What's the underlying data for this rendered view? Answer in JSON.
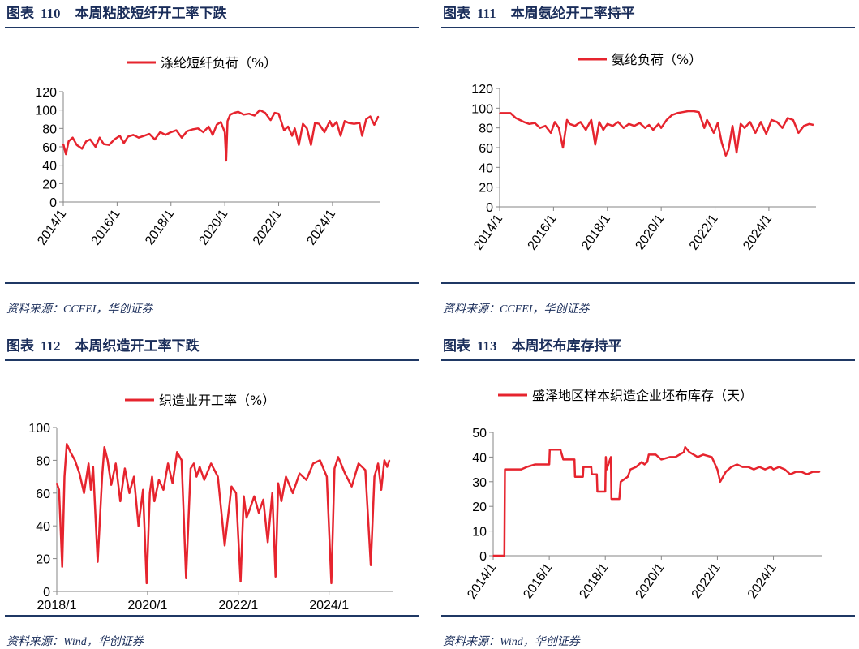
{
  "palette": {
    "line": "#e6242e",
    "title": "#1a2d5a",
    "rule": "#1f3864"
  },
  "panels": [
    {
      "label": "图表",
      "number": "110",
      "title": "本周粘胶短纤开工率下跌",
      "source": "资料来源：CCFEI，华创证券",
      "chart_data": {
        "type": "line",
        "legend": "涤纶短纤负荷（%）",
        "ylim": [
          0,
          120
        ],
        "yticks": [
          0,
          20,
          40,
          60,
          80,
          100,
          120
        ],
        "xlim": [
          2014.0,
          2025.75
        ],
        "xticks": [
          "2014/1",
          "2016/1",
          "2018/1",
          "2020/1",
          "2022/1",
          "2024/1"
        ],
        "xtick_values": [
          2014,
          2016,
          2018,
          2020,
          2022,
          2024
        ],
        "xtick_rotate": true,
        "x": [
          2014.0,
          2014.1,
          2014.2,
          2014.35,
          2014.5,
          2014.7,
          2014.85,
          2015.0,
          2015.2,
          2015.35,
          2015.5,
          2015.7,
          2015.9,
          2016.1,
          2016.25,
          2016.4,
          2016.6,
          2016.8,
          2017.0,
          2017.2,
          2017.4,
          2017.6,
          2017.8,
          2018.0,
          2018.2,
          2018.4,
          2018.6,
          2018.8,
          2019.0,
          2019.2,
          2019.4,
          2019.55,
          2019.7,
          2019.85,
          2020.0,
          2020.05,
          2020.1,
          2020.2,
          2020.35,
          2020.5,
          2020.7,
          2020.9,
          2021.1,
          2021.3,
          2021.5,
          2021.7,
          2021.85,
          2022.0,
          2022.2,
          2022.35,
          2022.5,
          2022.6,
          2022.75,
          2022.9,
          2023.05,
          2023.2,
          2023.35,
          2023.5,
          2023.7,
          2023.9,
          2024.0,
          2024.15,
          2024.3,
          2024.45,
          2024.6,
          2024.8,
          2025.0,
          2025.1,
          2025.25,
          2025.4,
          2025.55,
          2025.7
        ],
        "values": [
          63,
          52,
          66,
          70,
          62,
          58,
          66,
          68,
          60,
          70,
          63,
          62,
          68,
          72,
          64,
          71,
          73,
          70,
          72,
          74,
          68,
          76,
          73,
          76,
          78,
          70,
          77,
          79,
          80,
          76,
          82,
          73,
          84,
          87,
          76,
          45,
          88,
          95,
          97,
          98,
          95,
          96,
          94,
          100,
          97,
          89,
          97,
          96,
          78,
          82,
          72,
          80,
          62,
          85,
          80,
          62,
          86,
          85,
          76,
          88,
          82,
          87,
          72,
          88,
          86,
          85,
          86,
          72,
          90,
          93,
          84,
          93
        ]
      }
    },
    {
      "label": "图表",
      "number": "111",
      "title": "本周氨纶开工率持平",
      "source": "资料来源：CCFEI，华创证券",
      "chart_data": {
        "type": "line",
        "legend": "氨纶负荷（%）",
        "ylim": [
          0,
          120
        ],
        "yticks": [
          0,
          20,
          40,
          60,
          80,
          100,
          120
        ],
        "xlim": [
          2014.0,
          2025.75
        ],
        "xticks": [
          "2014/1",
          "2016/1",
          "2018/1",
          "2020/1",
          "2022/1",
          "2024/1"
        ],
        "xtick_values": [
          2014,
          2016,
          2018,
          2020,
          2022,
          2024
        ],
        "xtick_rotate": true,
        "x": [
          2014.0,
          2014.4,
          2014.6,
          2014.9,
          2015.1,
          2015.3,
          2015.5,
          2015.7,
          2015.9,
          2016.05,
          2016.2,
          2016.35,
          2016.5,
          2016.6,
          2016.8,
          2017.0,
          2017.2,
          2017.4,
          2017.55,
          2017.7,
          2017.85,
          2018.0,
          2018.2,
          2018.4,
          2018.6,
          2018.8,
          2019.0,
          2019.2,
          2019.4,
          2019.55,
          2019.7,
          2019.9,
          2020.0,
          2020.2,
          2020.4,
          2020.6,
          2020.8,
          2021.0,
          2021.2,
          2021.4,
          2021.5,
          2021.6,
          2021.7,
          2021.8,
          2021.95,
          2022.1,
          2022.25,
          2022.4,
          2022.5,
          2022.65,
          2022.8,
          2022.95,
          2023.1,
          2023.3,
          2023.5,
          2023.7,
          2023.9,
          2024.1,
          2024.3,
          2024.5,
          2024.7,
          2024.9,
          2025.1,
          2025.3,
          2025.5,
          2025.65
        ],
        "values": [
          95,
          95,
          90,
          86,
          84,
          85,
          80,
          82,
          75,
          86,
          80,
          60,
          88,
          84,
          82,
          86,
          78,
          88,
          63,
          86,
          78,
          84,
          82,
          86,
          80,
          84,
          82,
          85,
          80,
          83,
          78,
          84,
          80,
          88,
          93,
          95,
          96,
          97,
          97,
          96,
          88,
          80,
          88,
          83,
          75,
          85,
          65,
          52,
          58,
          82,
          55,
          84,
          80,
          86,
          75,
          86,
          74,
          88,
          86,
          80,
          90,
          88,
          75,
          82,
          84,
          83
        ]
      }
    },
    {
      "label": "图表",
      "number": "112",
      "title": "本周织造开工率下跌",
      "source": "资料来源：Wind，华创证券",
      "chart_data": {
        "type": "line",
        "legend": "织造业开工率（%）",
        "ylim": [
          0,
          100
        ],
        "yticks": [
          0,
          20,
          40,
          60,
          80,
          100
        ],
        "xlim": [
          2018.0,
          2025.4
        ],
        "xticks": [
          "2018/1",
          "2020/1",
          "2022/1",
          "2024/1"
        ],
        "xtick_values": [
          2018,
          2020,
          2022,
          2024
        ],
        "xtick_rotate": false,
        "x": [
          2018.0,
          2018.05,
          2018.12,
          2018.17,
          2018.22,
          2018.3,
          2018.4,
          2018.5,
          2018.6,
          2018.7,
          2018.75,
          2018.8,
          2018.9,
          2019.0,
          2019.05,
          2019.12,
          2019.2,
          2019.3,
          2019.4,
          2019.5,
          2019.6,
          2019.7,
          2019.8,
          2019.9,
          2019.98,
          2020.05,
          2020.1,
          2020.15,
          2020.25,
          2020.35,
          2020.45,
          2020.55,
          2020.65,
          2020.75,
          2020.85,
          2020.95,
          2021.02,
          2021.08,
          2021.15,
          2021.25,
          2021.4,
          2021.55,
          2021.7,
          2021.85,
          2021.95,
          2022.05,
          2022.12,
          2022.18,
          2022.25,
          2022.35,
          2022.45,
          2022.55,
          2022.65,
          2022.75,
          2022.82,
          2022.88,
          2022.95,
          2023.05,
          2023.2,
          2023.35,
          2023.5,
          2023.65,
          2023.8,
          2023.95,
          2024.05,
          2024.12,
          2024.2,
          2024.35,
          2024.5,
          2024.65,
          2024.8,
          2024.92,
          2025.0,
          2025.08,
          2025.15,
          2025.22,
          2025.28,
          2025.33
        ],
        "values": [
          66,
          62,
          15,
          70,
          90,
          85,
          80,
          72,
          60,
          78,
          62,
          76,
          18,
          70,
          88,
          80,
          65,
          78,
          55,
          75,
          60,
          70,
          40,
          62,
          5,
          60,
          70,
          55,
          68,
          62,
          78,
          66,
          85,
          80,
          8,
          75,
          78,
          70,
          76,
          68,
          78,
          70,
          28,
          64,
          60,
          6,
          58,
          45,
          50,
          58,
          48,
          56,
          30,
          60,
          9,
          66,
          55,
          70,
          60,
          72,
          68,
          78,
          80,
          70,
          5,
          75,
          82,
          72,
          64,
          78,
          74,
          16,
          70,
          78,
          62,
          80,
          76,
          80
        ]
      }
    },
    {
      "label": "图表",
      "number": "113",
      "title": "本周坯布库存持平",
      "source": "资料来源：Wind，华创证券",
      "chart_data": {
        "type": "line",
        "legend": "盛泽地区样本织造企业坯布库存（天）",
        "ylim": [
          0,
          50
        ],
        "yticks": [
          0,
          10,
          20,
          30,
          40,
          50
        ],
        "xlim": [
          2014.0,
          2025.75
        ],
        "xticks": [
          "2014/1",
          "2016/1",
          "2018/1",
          "2020/1",
          "2022/1",
          "2024/1"
        ],
        "xtick_values": [
          2014,
          2016,
          2018,
          2020,
          2022,
          2024
        ],
        "xtick_rotate": true,
        "x": [
          2014.0,
          2014.4,
          2014.42,
          2015.0,
          2015.2,
          2015.5,
          2016.0,
          2016.02,
          2016.4,
          2016.5,
          2016.9,
          2016.92,
          2017.2,
          2017.22,
          2017.5,
          2017.52,
          2017.7,
          2017.72,
          2018.0,
          2018.02,
          2018.05,
          2018.2,
          2018.22,
          2018.5,
          2018.55,
          2018.8,
          2018.9,
          2019.1,
          2019.3,
          2019.4,
          2019.5,
          2019.55,
          2019.8,
          2020.0,
          2020.3,
          2020.5,
          2020.8,
          2020.85,
          2021.0,
          2021.3,
          2021.5,
          2021.8,
          2022.0,
          2022.1,
          2022.3,
          2022.5,
          2022.7,
          2022.9,
          2023.1,
          2023.3,
          2023.5,
          2023.7,
          2023.9,
          2024.0,
          2024.2,
          2024.4,
          2024.6,
          2024.8,
          2025.0,
          2025.2,
          2025.4,
          2025.65
        ],
        "values": [
          0,
          0,
          35,
          35,
          36,
          37,
          37,
          43,
          43,
          39,
          39,
          32,
          32,
          36,
          36,
          33,
          33,
          26,
          26,
          40,
          35,
          40,
          23,
          23,
          30,
          32,
          35,
          36,
          38,
          37,
          38,
          41,
          41,
          39,
          40,
          40,
          42,
          44,
          42,
          40,
          41,
          40,
          35,
          30,
          34,
          36,
          37,
          36,
          36,
          35,
          36,
          35,
          36,
          35,
          36,
          35,
          33,
          34,
          34,
          33,
          34,
          34
        ]
      }
    }
  ]
}
